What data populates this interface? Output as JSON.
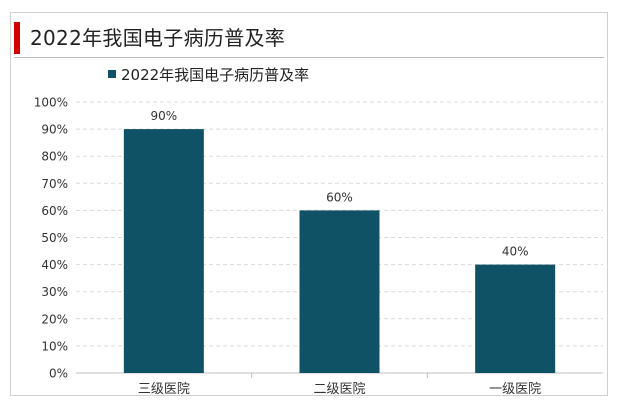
{
  "page": {
    "title": "2022年我国电子病历普及率"
  },
  "legend": {
    "label": "2022年我国电子病历普及率",
    "color": "#0f5165"
  },
  "chart_data": {
    "type": "bar",
    "title": "2022年我国电子病历普及率",
    "categories": [
      "三级医院",
      "二级医院",
      "一级医院"
    ],
    "series": [
      {
        "name": "2022年我国电子病历普及率",
        "values": [
          90,
          60,
          40
        ],
        "color": "#0f5165"
      }
    ],
    "data_labels": [
      "90%",
      "60%",
      "40%"
    ],
    "y_ticks": [
      "0%",
      "10%",
      "20%",
      "30%",
      "40%",
      "50%",
      "60%",
      "70%",
      "80%",
      "90%",
      "100%"
    ],
    "ylim": [
      0,
      100
    ],
    "xlabel": "",
    "ylabel": "",
    "grid": true,
    "legend_position": "top-left"
  }
}
